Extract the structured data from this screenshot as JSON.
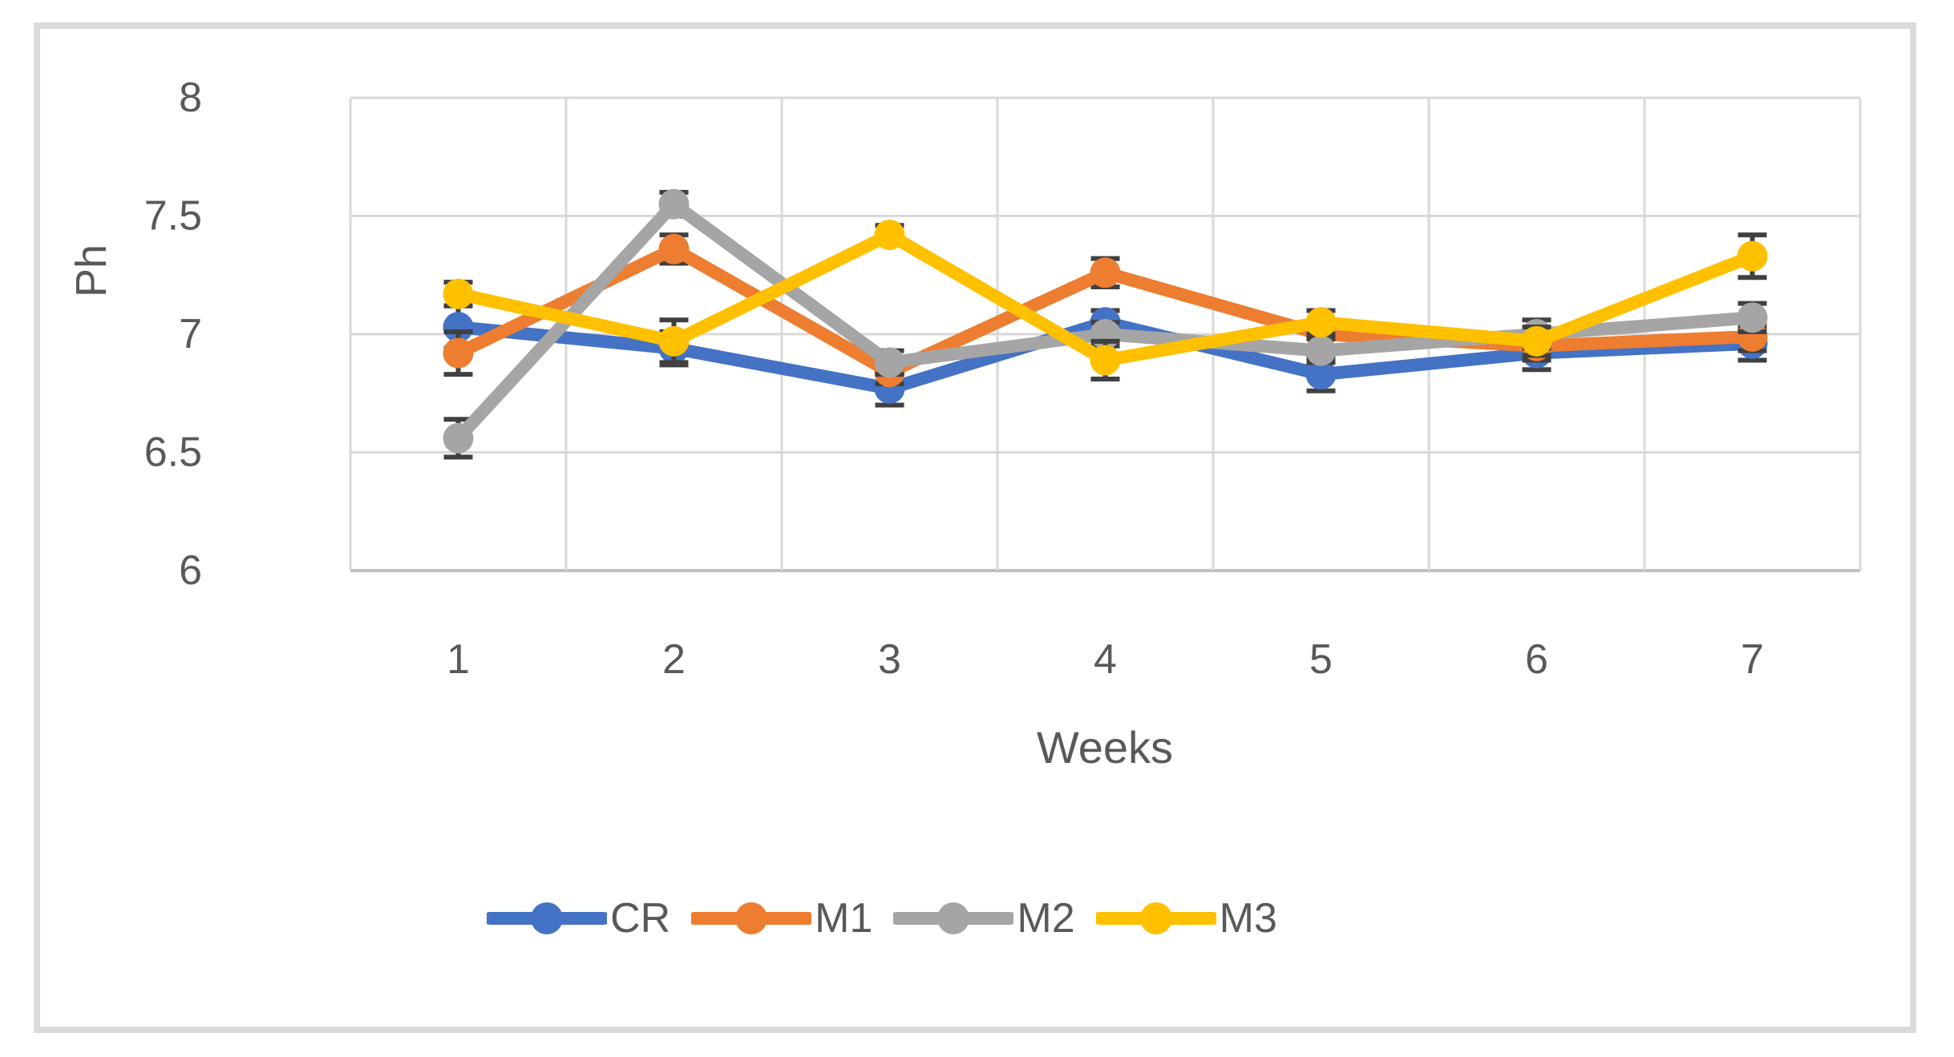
{
  "figure": {
    "background": "#ffffff",
    "border_color": "#dbdbdb",
    "text_color": "#595959",
    "gridline_color": "#d9d9d9",
    "axis_line_color": "#bfbfbf",
    "error_bar_color": "#404040"
  },
  "chart_data": {
    "type": "line",
    "title": "",
    "xlabel": "Weeks",
    "ylabel": "Ph",
    "x_tick_labels": [
      "1",
      "2",
      "3",
      "4",
      "5",
      "6",
      "7"
    ],
    "y_tick_labels": [
      "8",
      "7.5",
      "7",
      "6.5",
      "6"
    ],
    "y_ticks": [
      8,
      7.5,
      7,
      6.5,
      6
    ],
    "ylim": [
      6,
      8
    ],
    "grid": true,
    "legend_position": "bottom",
    "error_bars": true,
    "series": [
      {
        "name": "CR",
        "color": "#4472C4",
        "values": [
          7.03,
          6.94,
          6.77,
          7.05,
          6.83,
          6.92,
          6.96
        ],
        "errors": [
          0.09,
          0.07,
          0.07,
          0.05,
          0.07,
          0.07,
          0.07
        ]
      },
      {
        "name": "M1",
        "color": "#ED7D31",
        "values": [
          6.92,
          7.36,
          6.84,
          7.26,
          7.0,
          6.95,
          6.99
        ],
        "errors": [
          0.09,
          0.06,
          0.05,
          0.06,
          0.05,
          0.06,
          0.06
        ]
      },
      {
        "name": "M2",
        "color": "#A5A5A5",
        "values": [
          6.56,
          7.55,
          6.88,
          7.0,
          6.93,
          7.0,
          7.07
        ],
        "errors": [
          0.08,
          0.05,
          0.05,
          0.05,
          0.05,
          0.06,
          0.06
        ]
      },
      {
        "name": "M3",
        "color": "#FFC000",
        "values": [
          7.17,
          6.97,
          7.42,
          6.89,
          7.05,
          6.97,
          7.33
        ],
        "errors": [
          0.05,
          0.09,
          0.04,
          0.08,
          0.05,
          0.06,
          0.09
        ]
      }
    ]
  }
}
